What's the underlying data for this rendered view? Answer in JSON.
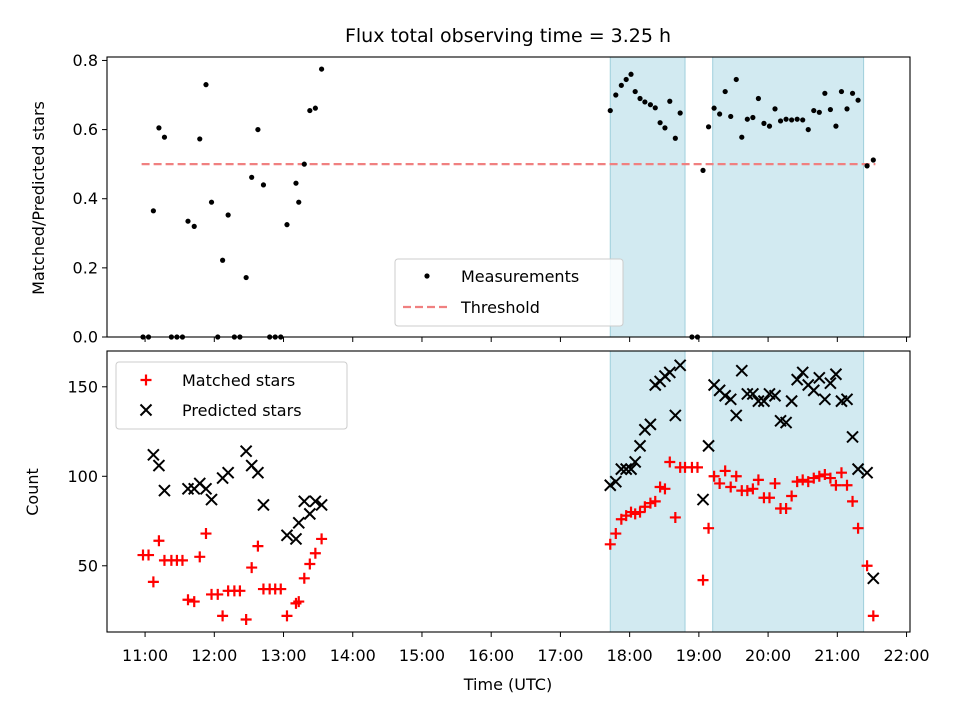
{
  "chart_data": {
    "title": "Flux total observing time = 3.25 h",
    "xlabel": "Time (UTC)",
    "x_ticks": [
      "11:00",
      "12:00",
      "13:00",
      "14:00",
      "15:00",
      "16:00",
      "17:00",
      "18:00",
      "19:00",
      "20:00",
      "21:00",
      "22:00"
    ],
    "x_range_hours": [
      10.45,
      22.05
    ],
    "shaded_regions_hours": [
      [
        17.72,
        18.8
      ],
      [
        19.2,
        21.38
      ]
    ],
    "shade_color": "#add8e6",
    "panels": [
      {
        "type": "scatter",
        "ylabel": "Matched/Predicted stars",
        "ylim": [
          0,
          0.81
        ],
        "yticks": [
          "0.0",
          "0.2",
          "0.4",
          "0.6",
          "0.8"
        ],
        "ytick_values": [
          0,
          0.2,
          0.4,
          0.6,
          0.8
        ],
        "threshold": {
          "name": "Threshold",
          "value": 0.5,
          "x_range_hours": [
            10.95,
            21.55
          ],
          "color": "#f08080"
        },
        "legend": {
          "placement": "lower-center",
          "items": [
            "Measurements",
            "Threshold"
          ]
        },
        "series": [
          {
            "name": "Measurements",
            "marker": "dot",
            "color": "#000000",
            "points": [
              [
                10.97,
                0
              ],
              [
                11.05,
                0
              ],
              [
                11.12,
                0.365
              ],
              [
                11.2,
                0.605
              ],
              [
                11.28,
                0.578
              ],
              [
                11.38,
                0
              ],
              [
                11.46,
                0
              ],
              [
                11.54,
                0
              ],
              [
                11.62,
                0.335
              ],
              [
                11.71,
                0.32
              ],
              [
                11.79,
                0.573
              ],
              [
                11.88,
                0.73
              ],
              [
                11.96,
                0.39
              ],
              [
                12.05,
                0
              ],
              [
                12.12,
                0.222
              ],
              [
                12.2,
                0.353
              ],
              [
                12.29,
                0
              ],
              [
                12.37,
                0
              ],
              [
                12.46,
                0.172
              ],
              [
                12.54,
                0.462
              ],
              [
                12.63,
                0.6
              ],
              [
                12.71,
                0.44
              ],
              [
                12.8,
                0
              ],
              [
                12.88,
                0
              ],
              [
                12.96,
                0
              ],
              [
                13.05,
                0.325
              ],
              [
                13.18,
                0.445
              ],
              [
                13.22,
                0.39
              ],
              [
                13.3,
                0.5
              ],
              [
                13.38,
                0.655
              ],
              [
                13.46,
                0.662
              ],
              [
                13.55,
                0.775
              ],
              [
                17.72,
                0.655
              ],
              [
                17.8,
                0.7
              ],
              [
                17.88,
                0.728
              ],
              [
                17.95,
                0.745
              ],
              [
                18.02,
                0.76
              ],
              [
                18.08,
                0.71
              ],
              [
                18.15,
                0.69
              ],
              [
                18.22,
                0.68
              ],
              [
                18.3,
                0.672
              ],
              [
                18.37,
                0.663
              ],
              [
                18.44,
                0.62
              ],
              [
                18.51,
                0.605
              ],
              [
                18.58,
                0.682
              ],
              [
                18.66,
                0.575
              ],
              [
                18.73,
                0.648
              ],
              [
                18.9,
                0
              ],
              [
                18.98,
                0
              ],
              [
                19.06,
                0.482
              ],
              [
                19.14,
                0.608
              ],
              [
                19.22,
                0.662
              ],
              [
                19.3,
                0.645
              ],
              [
                19.38,
                0.71
              ],
              [
                19.46,
                0.638
              ],
              [
                19.54,
                0.745
              ],
              [
                19.62,
                0.578
              ],
              [
                19.7,
                0.63
              ],
              [
                19.78,
                0.635
              ],
              [
                19.86,
                0.69
              ],
              [
                19.94,
                0.618
              ],
              [
                20.02,
                0.61
              ],
              [
                20.1,
                0.66
              ],
              [
                20.18,
                0.625
              ],
              [
                20.26,
                0.63
              ],
              [
                20.34,
                0.628
              ],
              [
                20.42,
                0.63
              ],
              [
                20.5,
                0.628
              ],
              [
                20.58,
                0.6
              ],
              [
                20.66,
                0.655
              ],
              [
                20.74,
                0.65
              ],
              [
                20.82,
                0.705
              ],
              [
                20.9,
                0.658
              ],
              [
                20.98,
                0.61
              ],
              [
                21.06,
                0.71
              ],
              [
                21.14,
                0.66
              ],
              [
                21.22,
                0.705
              ],
              [
                21.3,
                0.685
              ],
              [
                21.43,
                0.495
              ],
              [
                21.52,
                0.512
              ]
            ]
          }
        ]
      },
      {
        "type": "scatter",
        "ylabel": "Count",
        "ylim": [
          13,
          170
        ],
        "yticks": [
          "50",
          "100",
          "150"
        ],
        "ytick_values": [
          50,
          100,
          150
        ],
        "legend": {
          "placement": "upper-left",
          "items": [
            "Matched stars",
            "Predicted stars"
          ]
        },
        "series": [
          {
            "name": "Matched stars",
            "marker": "plus",
            "color": "#ff0000",
            "points": [
              [
                10.97,
                56
              ],
              [
                11.05,
                56
              ],
              [
                11.12,
                41
              ],
              [
                11.2,
                64
              ],
              [
                11.28,
                53
              ],
              [
                11.38,
                53
              ],
              [
                11.46,
                53
              ],
              [
                11.54,
                53
              ],
              [
                11.62,
                31
              ],
              [
                11.71,
                30
              ],
              [
                11.79,
                55
              ],
              [
                11.88,
                68
              ],
              [
                11.96,
                34
              ],
              [
                12.05,
                34
              ],
              [
                12.12,
                22
              ],
              [
                12.2,
                36
              ],
              [
                12.29,
                36
              ],
              [
                12.37,
                36
              ],
              [
                12.46,
                20
              ],
              [
                12.54,
                49
              ],
              [
                12.63,
                61
              ],
              [
                12.71,
                37
              ],
              [
                12.8,
                37
              ],
              [
                12.88,
                37
              ],
              [
                12.96,
                37
              ],
              [
                13.05,
                22
              ],
              [
                13.18,
                29
              ],
              [
                13.22,
                30
              ],
              [
                13.3,
                43
              ],
              [
                13.38,
                51
              ],
              [
                13.46,
                57
              ],
              [
                13.55,
                65
              ],
              [
                17.72,
                62
              ],
              [
                17.8,
                68
              ],
              [
                17.88,
                76
              ],
              [
                17.95,
                78
              ],
              [
                18.02,
                80
              ],
              [
                18.08,
                79
              ],
              [
                18.15,
                80
              ],
              [
                18.22,
                83
              ],
              [
                18.3,
                85
              ],
              [
                18.37,
                86
              ],
              [
                18.44,
                94
              ],
              [
                18.51,
                93
              ],
              [
                18.58,
                108
              ],
              [
                18.66,
                77
              ],
              [
                18.73,
                105
              ],
              [
                18.8,
                105
              ],
              [
                18.9,
                105
              ],
              [
                18.98,
                105
              ],
              [
                19.06,
                42
              ],
              [
                19.14,
                71
              ],
              [
                19.22,
                100
              ],
              [
                19.3,
                96
              ],
              [
                19.38,
                103
              ],
              [
                19.46,
                94
              ],
              [
                19.54,
                100
              ],
              [
                19.62,
                92
              ],
              [
                19.7,
                92
              ],
              [
                19.78,
                93
              ],
              [
                19.86,
                98
              ],
              [
                19.94,
                88
              ],
              [
                20.02,
                88
              ],
              [
                20.1,
                96
              ],
              [
                20.18,
                82
              ],
              [
                20.26,
                82
              ],
              [
                20.34,
                89
              ],
              [
                20.42,
                97
              ],
              [
                20.5,
                98
              ],
              [
                20.58,
                97
              ],
              [
                20.66,
                99
              ],
              [
                20.74,
                100
              ],
              [
                20.82,
                101
              ],
              [
                20.9,
                99
              ],
              [
                20.98,
                95
              ],
              [
                21.06,
                102
              ],
              [
                21.14,
                95
              ],
              [
                21.22,
                86
              ],
              [
                21.3,
                71
              ],
              [
                21.43,
                50
              ],
              [
                21.52,
                22
              ]
            ]
          },
          {
            "name": "Predicted stars",
            "marker": "cross",
            "color": "#000000",
            "points": [
              [
                11.12,
                112
              ],
              [
                11.2,
                106
              ],
              [
                11.28,
                92
              ],
              [
                11.62,
                93
              ],
              [
                11.71,
                93
              ],
              [
                11.79,
                96
              ],
              [
                11.88,
                93
              ],
              [
                11.96,
                87
              ],
              [
                12.12,
                99
              ],
              [
                12.2,
                102
              ],
              [
                12.46,
                114
              ],
              [
                12.54,
                106
              ],
              [
                12.63,
                102
              ],
              [
                12.71,
                84
              ],
              [
                13.05,
                67
              ],
              [
                13.18,
                65
              ],
              [
                13.22,
                74
              ],
              [
                13.3,
                86
              ],
              [
                13.38,
                79
              ],
              [
                13.46,
                86
              ],
              [
                13.55,
                84
              ],
              [
                17.72,
                95
              ],
              [
                17.8,
                97
              ],
              [
                17.88,
                104
              ],
              [
                17.95,
                104
              ],
              [
                18.02,
                104
              ],
              [
                18.08,
                108
              ],
              [
                18.15,
                117
              ],
              [
                18.22,
                126
              ],
              [
                18.3,
                129
              ],
              [
                18.37,
                151
              ],
              [
                18.44,
                153
              ],
              [
                18.51,
                156
              ],
              [
                18.58,
                158
              ],
              [
                18.66,
                134
              ],
              [
                18.73,
                162
              ],
              [
                19.06,
                87
              ],
              [
                19.14,
                117
              ],
              [
                19.22,
                151
              ],
              [
                19.3,
                148
              ],
              [
                19.38,
                145
              ],
              [
                19.46,
                143
              ],
              [
                19.54,
                134
              ],
              [
                19.62,
                159
              ],
              [
                19.7,
                146
              ],
              [
                19.78,
                146
              ],
              [
                19.86,
                142
              ],
              [
                19.94,
                142
              ],
              [
                20.02,
                146
              ],
              [
                20.1,
                145
              ],
              [
                20.18,
                131
              ],
              [
                20.26,
                130
              ],
              [
                20.34,
                142
              ],
              [
                20.42,
                154
              ],
              [
                20.5,
                158
              ],
              [
                20.58,
                151
              ],
              [
                20.66,
                148
              ],
              [
                20.74,
                155
              ],
              [
                20.82,
                143
              ],
              [
                20.9,
                152
              ],
              [
                20.98,
                157
              ],
              [
                21.06,
                142
              ],
              [
                21.14,
                143
              ],
              [
                21.22,
                122
              ],
              [
                21.3,
                104
              ],
              [
                21.43,
                102
              ],
              [
                21.52,
                43
              ]
            ]
          }
        ]
      }
    ]
  }
}
